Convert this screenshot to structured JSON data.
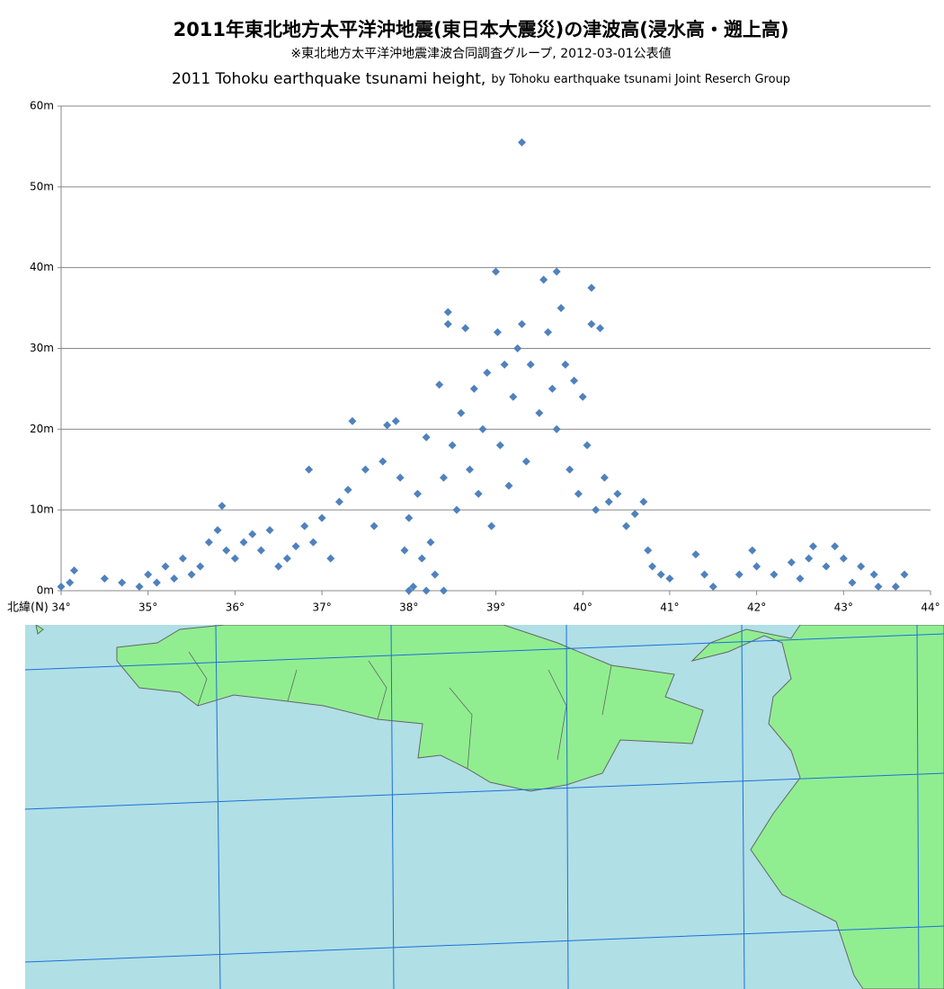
{
  "chart_data": {
    "type": "scatter",
    "title": "2011年東北地方太平洋沖地震(東日本大震災)の津波高(浸水高・遡上高)",
    "subtitle": "※東北地方太平洋沖地震津波合同調査グループ, 2012-03-01公表値",
    "subtitle_en": "2011 Tohoku earthquake tsunami height,",
    "subtitle_en_credit": "by Tohoku earthquake tsunami Joint Reserch Group",
    "x_label": "北緯(N)",
    "color": "#4f81bd",
    "grid": true,
    "xlim": [
      34,
      44
    ],
    "xticks": [
      {
        "value": 34,
        "label": "34°"
      },
      {
        "value": 35,
        "label": "35°"
      },
      {
        "value": 36,
        "label": "36°"
      },
      {
        "value": 37,
        "label": "37°"
      },
      {
        "value": 38,
        "label": "38°"
      },
      {
        "value": 39,
        "label": "39°"
      },
      {
        "value": 40,
        "label": "40°"
      },
      {
        "value": 41,
        "label": "41°"
      },
      {
        "value": 42,
        "label": "42°"
      },
      {
        "value": 43,
        "label": "43°"
      },
      {
        "value": 44,
        "label": "44°"
      }
    ],
    "ylim": [
      0,
      60
    ],
    "yticks": [
      {
        "value": 0,
        "label": "0m"
      },
      {
        "value": 10,
        "label": "10m"
      },
      {
        "value": 20,
        "label": "20m"
      },
      {
        "value": 30,
        "label": "30m"
      },
      {
        "value": 40,
        "label": "40m"
      },
      {
        "value": 50,
        "label": "50m"
      },
      {
        "value": 60,
        "label": "60m"
      }
    ],
    "x": [
      34.0,
      34.1,
      34.15,
      34.5,
      34.7,
      34.9,
      35.0,
      35.1,
      35.2,
      35.3,
      35.4,
      35.5,
      35.6,
      35.7,
      35.8,
      35.85,
      35.9,
      36.0,
      36.1,
      36.2,
      36.3,
      36.4,
      36.5,
      36.6,
      36.7,
      36.8,
      36.85,
      36.9,
      37.0,
      37.1,
      37.2,
      37.3,
      37.35,
      37.5,
      37.6,
      37.7,
      37.75,
      37.85,
      37.9,
      37.95,
      38.0,
      38.0,
      38.05,
      38.1,
      38.15,
      38.2,
      38.2,
      38.25,
      38.3,
      38.35,
      38.4,
      38.4,
      38.45,
      38.45,
      38.5,
      38.55,
      38.6,
      38.65,
      38.7,
      38.75,
      38.8,
      38.85,
      38.9,
      38.95,
      39.0,
      39.02,
      39.05,
      39.1,
      39.15,
      39.2,
      39.25,
      39.3,
      39.3,
      39.35,
      39.4,
      39.5,
      39.55,
      39.6,
      39.65,
      39.7,
      39.7,
      39.75,
      39.8,
      39.85,
      39.9,
      39.95,
      40.0,
      40.05,
      40.1,
      40.1,
      40.15,
      40.2,
      40.25,
      40.3,
      40.4,
      40.5,
      40.6,
      40.7,
      40.75,
      40.8,
      40.9,
      41.0,
      41.3,
      41.4,
      41.5,
      41.8,
      41.95,
      42.0,
      42.2,
      42.4,
      42.5,
      42.6,
      42.65,
      42.8,
      42.9,
      43.0,
      43.1,
      43.2,
      43.35,
      43.4,
      43.6,
      43.7
    ],
    "values": [
      0.5,
      1,
      2.5,
      1.5,
      1,
      0.5,
      2,
      1,
      3,
      1.5,
      4,
      2,
      3,
      6,
      7.5,
      10.5,
      5,
      4,
      6,
      7,
      5,
      7.5,
      3,
      4,
      5.5,
      8,
      15,
      6,
      9,
      4,
      11,
      12.5,
      21,
      15,
      8,
      16,
      20.5,
      21,
      14,
      5,
      9,
      0,
      0.5,
      12,
      4,
      19,
      0,
      6,
      2,
      25.5,
      14,
      0,
      33,
      34.5,
      18,
      10,
      22,
      32.5,
      15,
      25,
      12,
      20,
      27,
      8,
      39.5,
      32,
      18,
      28,
      13,
      24,
      30,
      55.5,
      33,
      16,
      28,
      22,
      38.5,
      32,
      25,
      39.5,
      20,
      35,
      28,
      15,
      26,
      12,
      24,
      18,
      37.5,
      33,
      10,
      32.5,
      14,
      11,
      12,
      8,
      9.5,
      11,
      5,
      3,
      2,
      1.5,
      4.5,
      2,
      0.5,
      2,
      5,
      3,
      2,
      3.5,
      1.5,
      4,
      5.5,
      3,
      5.5,
      4,
      1,
      3,
      2,
      0.5,
      0.5,
      2
    ]
  }
}
